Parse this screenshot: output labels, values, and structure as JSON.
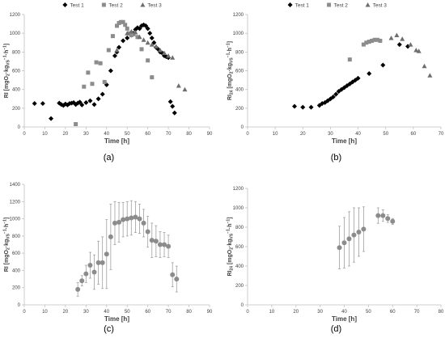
{
  "colors": {
    "series1": "#000000",
    "series2": "#8c8c8c",
    "series3": "#6e6e6e",
    "mean": "#8c8c8c",
    "axis": "#bfbfbf",
    "text": "#404040"
  },
  "panels": {
    "a": {
      "caption": "(a)",
      "xlabel": "Time [h]",
      "ylabel": {
        "main": "RI [mgO",
        "sub1": "2",
        "mid": "·kg",
        "sub2": "VS",
        "sup": "−1",
        "tail": "·h",
        "sup2": "−1",
        "end": "]"
      },
      "xticks": [
        "0",
        "10",
        "20",
        "30",
        "40",
        "50",
        "60",
        "70",
        "80",
        "90"
      ],
      "yticks": [
        "0",
        "200",
        "400",
        "600",
        "800",
        "1000",
        "1200"
      ],
      "legend": [
        "Test 1",
        "Test 2",
        "Test 3"
      ]
    },
    "b": {
      "caption": "(b)",
      "xlabel": "Time [h]",
      "ylabel": {
        "main": "RI",
        "sub0": "24",
        "mid0": " [mgO",
        "sub1": "2",
        "mid": "·kg",
        "sub2": "VS",
        "sup": "−1",
        "tail": "·h",
        "sup2": "−1",
        "end": "]"
      },
      "xticks": [
        "0",
        "10",
        "20",
        "30",
        "40",
        "50",
        "60",
        "70"
      ],
      "yticks": [
        "0",
        "200",
        "400",
        "600",
        "800",
        "1000",
        "1200"
      ],
      "legend": [
        "Test 1",
        "Test 2",
        "Test 3"
      ]
    },
    "c": {
      "caption": "(c)",
      "xlabel": "Time [h]",
      "ylabel": {
        "main": "RI [mgO",
        "sub1": "2",
        "mid": "·kg",
        "sub2": "VS",
        "sup": "−1",
        "tail": "·h",
        "sup2": "−1",
        "end": "]"
      },
      "xticks": [
        "0",
        "10",
        "20",
        "30",
        "40",
        "50",
        "60",
        "70",
        "80",
        "90"
      ],
      "yticks": [
        "0",
        "200",
        "400",
        "600",
        "800",
        "1000",
        "1200",
        "1400"
      ]
    },
    "d": {
      "caption": "(d)",
      "xlabel": "Time [h]",
      "ylabel": {
        "main": "RI",
        "sub0": "24",
        "mid0": " [mgO",
        "sub1": "2",
        "mid": "·kg",
        "sub2": "VS",
        "sup": "−1",
        "tail": "·h",
        "sup2": "−1",
        "end": "]"
      },
      "xticks": [
        "0",
        "10",
        "20",
        "30",
        "40",
        "50",
        "60",
        "70",
        "80"
      ],
      "yticks": [
        "0",
        "200",
        "400",
        "600",
        "800",
        "1000",
        "1200"
      ]
    }
  },
  "chart_data": [
    {
      "panel": "a",
      "type": "scatter",
      "xlabel": "Time [h]",
      "ylabel": "RI [mgO2·kgVS−1·h−1]",
      "xlim": [
        0,
        90
      ],
      "ylim": [
        0,
        1200
      ],
      "legend_position": "top",
      "series": [
        {
          "name": "Test 1",
          "marker": "diamond",
          "x": [
            5,
            9,
            13,
            17,
            18,
            19,
            20,
            21,
            22,
            23,
            24,
            25,
            26,
            27,
            28,
            30,
            32,
            34,
            36,
            38,
            40,
            42,
            44,
            45,
            46,
            48,
            50,
            52,
            53,
            54,
            55,
            56,
            57,
            58,
            59,
            60,
            61,
            62,
            63,
            64,
            65,
            66,
            67,
            68,
            69,
            70,
            71,
            72,
            73
          ],
          "y": [
            250,
            250,
            90,
            255,
            240,
            230,
            245,
            235,
            250,
            255,
            260,
            240,
            255,
            265,
            235,
            260,
            280,
            240,
            300,
            350,
            450,
            600,
            760,
            800,
            850,
            920,
            950,
            980,
            1000,
            1040,
            1060,
            1050,
            1080,
            1090,
            1080,
            1050,
            1000,
            950,
            900,
            850,
            830,
            800,
            790,
            760,
            750,
            740,
            270,
            220,
            150
          ]
        },
        {
          "name": "Test 2",
          "marker": "square",
          "x": [
            25,
            29,
            31,
            33,
            35,
            37,
            39,
            41,
            43,
            45,
            46,
            47,
            48,
            49,
            50,
            51,
            52,
            53,
            55,
            57,
            60,
            62
          ],
          "y": [
            30,
            430,
            580,
            460,
            690,
            680,
            480,
            820,
            970,
            1080,
            1110,
            1120,
            1120,
            1090,
            1050,
            1000,
            980,
            990,
            960,
            830,
            710,
            530
          ]
        },
        {
          "name": "Test 3",
          "marker": "triangle",
          "x": [
            45,
            50,
            52,
            54,
            56,
            58,
            60,
            62,
            64,
            66,
            68,
            70,
            72,
            75,
            78
          ],
          "y": [
            820,
            1000,
            1020,
            1010,
            960,
            930,
            900,
            880,
            860,
            820,
            790,
            760,
            740,
            440,
            400
          ]
        }
      ]
    },
    {
      "panel": "b",
      "type": "scatter",
      "xlabel": "Time [h]",
      "ylabel": "RI24 [mgO2·kgVS−1·h−1]",
      "xlim": [
        0,
        70
      ],
      "ylim": [
        0,
        1200
      ],
      "legend_position": "top",
      "series": [
        {
          "name": "Test 1",
          "marker": "diamond",
          "x": [
            17,
            20,
            23,
            26,
            27,
            28,
            29,
            30,
            31,
            32,
            33,
            34,
            35,
            36,
            37,
            38,
            39,
            40,
            44,
            49,
            55,
            58
          ],
          "y": [
            220,
            210,
            210,
            230,
            250,
            260,
            280,
            300,
            320,
            350,
            380,
            400,
            420,
            440,
            460,
            480,
            500,
            520,
            570,
            660,
            880,
            860
          ]
        },
        {
          "name": "Test 2",
          "marker": "square",
          "x": [
            37,
            42,
            43,
            44,
            45,
            46,
            47,
            48
          ],
          "y": [
            720,
            880,
            900,
            910,
            920,
            930,
            930,
            920
          ]
        },
        {
          "name": "Test 3",
          "marker": "triangle",
          "x": [
            52,
            54,
            56,
            59,
            61,
            62,
            64,
            66
          ],
          "y": [
            950,
            980,
            940,
            880,
            820,
            810,
            650,
            550
          ]
        }
      ]
    },
    {
      "panel": "c",
      "type": "scatter",
      "xlabel": "Time [h]",
      "ylabel": "RI [mgO2·kgVS−1·h−1]",
      "xlim": [
        0,
        90
      ],
      "ylim": [
        0,
        1400
      ],
      "series": [
        {
          "marker": "circle",
          "x": [
            26,
            28,
            30,
            32,
            34,
            36,
            38,
            40,
            42,
            44,
            46,
            48,
            50,
            52,
            54,
            56,
            58,
            60,
            62,
            64,
            66,
            68,
            70,
            72,
            74
          ],
          "y": [
            180,
            280,
            360,
            460,
            380,
            490,
            490,
            590,
            790,
            950,
            960,
            990,
            1000,
            1010,
            1020,
            1000,
            950,
            850,
            750,
            740,
            700,
            700,
            680,
            350,
            300
          ],
          "err": [
            80,
            60,
            100,
            150,
            200,
            250,
            300,
            400,
            380,
            250,
            230,
            200,
            200,
            200,
            180,
            170,
            160,
            180,
            200,
            180,
            150,
            140,
            130,
            140,
            150
          ]
        }
      ]
    },
    {
      "panel": "d",
      "type": "scatter",
      "xlabel": "Time [h]",
      "ylabel": "RI24 [mgO2·kgVS−1·h−1]",
      "xlim": [
        0,
        80
      ],
      "ylim": [
        0,
        1200
      ],
      "series": [
        {
          "marker": "circle",
          "x": [
            38,
            40,
            42,
            44,
            46,
            48,
            54,
            56,
            58,
            60
          ],
          "y": [
            590,
            640,
            680,
            720,
            750,
            780,
            920,
            920,
            890,
            860
          ],
          "err": [
            220,
            260,
            280,
            280,
            250,
            230,
            80,
            60,
            40,
            30
          ]
        }
      ]
    }
  ]
}
